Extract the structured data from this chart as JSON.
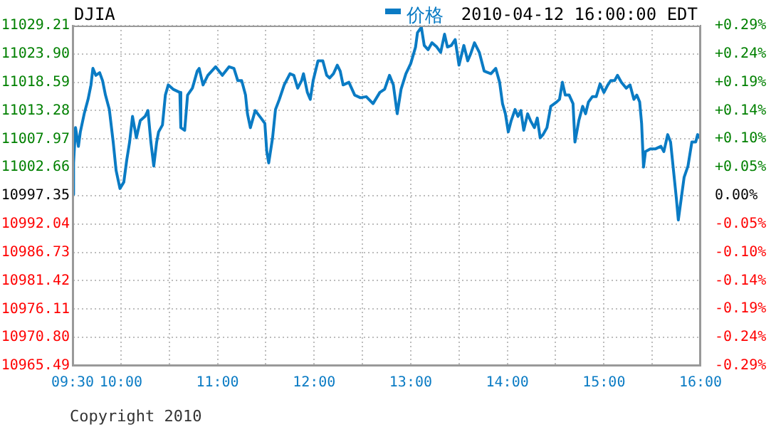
{
  "chart_data": {
    "type": "line",
    "title": "DJIA",
    "subtitle": "2010-04-12 16:00:00 EDT",
    "legend": "top",
    "grid": true,
    "marker": "none",
    "line_style": "solid",
    "annotations": [
      "Copyright 2010"
    ],
    "xlim": [
      9.5,
      16
    ],
    "xticks": [
      {
        "value": 9.5,
        "label": "09:30"
      },
      {
        "value": 10,
        "label": "10:00"
      },
      {
        "value": 10.5,
        "label": null
      },
      {
        "value": 11,
        "label": "11:00"
      },
      {
        "value": 11.5,
        "label": null
      },
      {
        "value": 12,
        "label": "12:00"
      },
      {
        "value": 12.5,
        "label": null
      },
      {
        "value": 13,
        "label": "13:00"
      },
      {
        "value": 13.5,
        "label": null
      },
      {
        "value": 14,
        "label": "14:00"
      },
      {
        "value": 14.5,
        "label": null
      },
      {
        "value": 15,
        "label": "15:00"
      },
      {
        "value": 15.5,
        "label": null
      },
      {
        "value": 16,
        "label": "16:00"
      }
    ],
    "ylim": [
      10965.49,
      11029.21
    ],
    "yticks": [
      10965.49,
      {
        "value": 10970.8,
        "label": "10970.80"
      },
      10976.11,
      10981.42,
      10986.73,
      10992.04,
      10997.35,
      11002.66,
      11007.97,
      11013.28,
      11018.59,
      {
        "value": 11023.9,
        "label": "11023.90"
      },
      11029.21
    ],
    "y2lim": [
      -0.2897,
      0.2897
    ],
    "y2ticks": [
      {
        "value": -0.2897,
        "label": "-0.29%"
      },
      {
        "value": -0.2414,
        "label": "-0.24%"
      },
      {
        "value": -0.1931,
        "label": "-0.19%"
      },
      {
        "value": -0.1448,
        "label": "-0.14%"
      },
      {
        "value": -0.0966,
        "label": "-0.10%"
      },
      {
        "value": -0.0483,
        "label": "-0.05%"
      },
      {
        "value": 0,
        "label": "0.00%"
      },
      {
        "value": 0.0483,
        "label": "+0.05%"
      },
      {
        "value": 0.0966,
        "label": "+0.10%"
      },
      {
        "value": 0.1448,
        "label": "+0.14%"
      },
      {
        "value": 0.1931,
        "label": "+0.19%"
      },
      {
        "value": 0.2414,
        "label": "+0.24%"
      },
      {
        "value": 0.2897,
        "label": "+0.29%"
      }
    ],
    "series": [
      {
        "name": "价格",
        "color": "#0a7bc4",
        "x": [
          9.5,
          9.51,
          9.53,
          9.56,
          9.58,
          9.62,
          9.66,
          9.69,
          9.71,
          9.74,
          9.78,
          9.81,
          9.84,
          9.88,
          9.92,
          9.95,
          9.99,
          10.03,
          10.06,
          10.09,
          10.12,
          10.16,
          10.2,
          10.25,
          10.28,
          10.31,
          10.34,
          10.37,
          10.39,
          10.43,
          10.46,
          10.49,
          10.54,
          10.61,
          10.62,
          10.66,
          10.69,
          10.74,
          10.79,
          10.81,
          10.85,
          10.9,
          10.98,
          11.05,
          11.12,
          11.17,
          11.21,
          11.25,
          11.29,
          11.31,
          11.34,
          11.39,
          11.45,
          11.49,
          11.51,
          11.53,
          11.57,
          11.6,
          11.64,
          11.69,
          11.75,
          11.79,
          11.83,
          11.87,
          11.89,
          11.93,
          11.96,
          11.99,
          12.04,
          12.09,
          12.13,
          12.16,
          12.2,
          12.24,
          12.27,
          12.3,
          12.36,
          12.42,
          12.48,
          12.54,
          12.61,
          12.68,
          12.73,
          12.78,
          12.82,
          12.86,
          12.9,
          12.95,
          13.0,
          13.05,
          13.07,
          13.11,
          13.14,
          13.18,
          13.22,
          13.27,
          13.31,
          13.35,
          13.38,
          13.42,
          13.46,
          13.5,
          13.55,
          13.59,
          13.62,
          13.66,
          13.71,
          13.76,
          13.83,
          13.88,
          13.92,
          13.95,
          13.98,
          14.01,
          14.04,
          14.08,
          14.11,
          14.14,
          14.17,
          14.21,
          14.24,
          14.28,
          14.31,
          14.34,
          14.37,
          14.41,
          14.45,
          14.51,
          14.54,
          14.57,
          14.6,
          14.64,
          14.68,
          14.7,
          14.74,
          14.78,
          14.81,
          14.84,
          14.88,
          14.92,
          14.96,
          15.0,
          15.04,
          15.07,
          15.11,
          15.14,
          15.18,
          15.23,
          15.27,
          15.31,
          15.34,
          15.37,
          15.39,
          15.41,
          15.43,
          15.48,
          15.53,
          15.59,
          15.62,
          15.66,
          15.69,
          15.72,
          15.75,
          15.77,
          15.8,
          15.83,
          15.87,
          15.91,
          15.95,
          15.97,
          16.0
        ],
        "values": [
          10997.6,
          11003.5,
          11010.1,
          11006.6,
          11009.3,
          11012.7,
          11015.4,
          11018.1,
          11021.2,
          11019.9,
          11020.4,
          11018.9,
          11016.2,
          11013.5,
          11007.4,
          11002.1,
          10998.7,
          10999.9,
          11004.0,
          11007.4,
          11012.2,
          11008.2,
          11011.4,
          11012.2,
          11013.3,
          11007.4,
          11002.9,
          11007.4,
          11009.3,
          11010.6,
          11016.2,
          11018.1,
          11017.3,
          11016.7,
          11010.1,
          11009.6,
          11016.2,
          11017.5,
          11020.7,
          11021.2,
          11018.1,
          11019.9,
          11021.5,
          11019.9,
          11021.5,
          11021.2,
          11018.9,
          11018.9,
          11016.2,
          11012.7,
          11010.1,
          11013.3,
          11011.9,
          11010.9,
          11005.6,
          11003.5,
          11008.2,
          11013.5,
          11015.4,
          11018.1,
          11020.2,
          11019.9,
          11017.5,
          11018.9,
          11020.2,
          11016.7,
          11015.4,
          11018.9,
          11022.6,
          11022.6,
          11019.9,
          11019.4,
          11020.2,
          11021.8,
          11020.7,
          11018.1,
          11018.6,
          11016.2,
          11015.7,
          11015.9,
          11014.6,
          11016.7,
          11017.3,
          11019.9,
          11018.1,
          11012.7,
          11017.3,
          11020.2,
          11022.1,
          11025.2,
          11027.9,
          11028.9,
          11025.5,
          11024.7,
          11026.0,
          11025.2,
          11024.2,
          11027.6,
          11025.2,
          11025.5,
          11026.6,
          11021.8,
          11025.5,
          11022.6,
          11023.9,
          11026.0,
          11024.2,
          11020.7,
          11020.2,
          11021.2,
          11018.6,
          11014.6,
          11012.7,
          11009.3,
          11011.4,
          11013.5,
          11012.2,
          11013.3,
          11009.6,
          11012.7,
          11011.4,
          11010.1,
          11011.9,
          11008.2,
          11008.8,
          11010.1,
          11014.1,
          11014.9,
          11015.4,
          11018.6,
          11016.2,
          11016.2,
          11014.6,
          11007.4,
          11011.4,
          11014.1,
          11012.7,
          11014.9,
          11015.9,
          11015.9,
          11018.3,
          11016.7,
          11018.1,
          11018.9,
          11018.9,
          11019.9,
          11018.6,
          11017.5,
          11018.1,
          11015.4,
          11016.2,
          11014.9,
          11010.9,
          11002.7,
          11005.6,
          11006.1,
          11006.1,
          11006.6,
          11005.6,
          11008.8,
          11007.4,
          11002.1,
          10996.8,
          10992.8,
          10996.8,
          11000.8,
          11002.9,
          11007.4,
          11007.4,
          11008.8,
          11008.0
        ]
      }
    ]
  }
}
